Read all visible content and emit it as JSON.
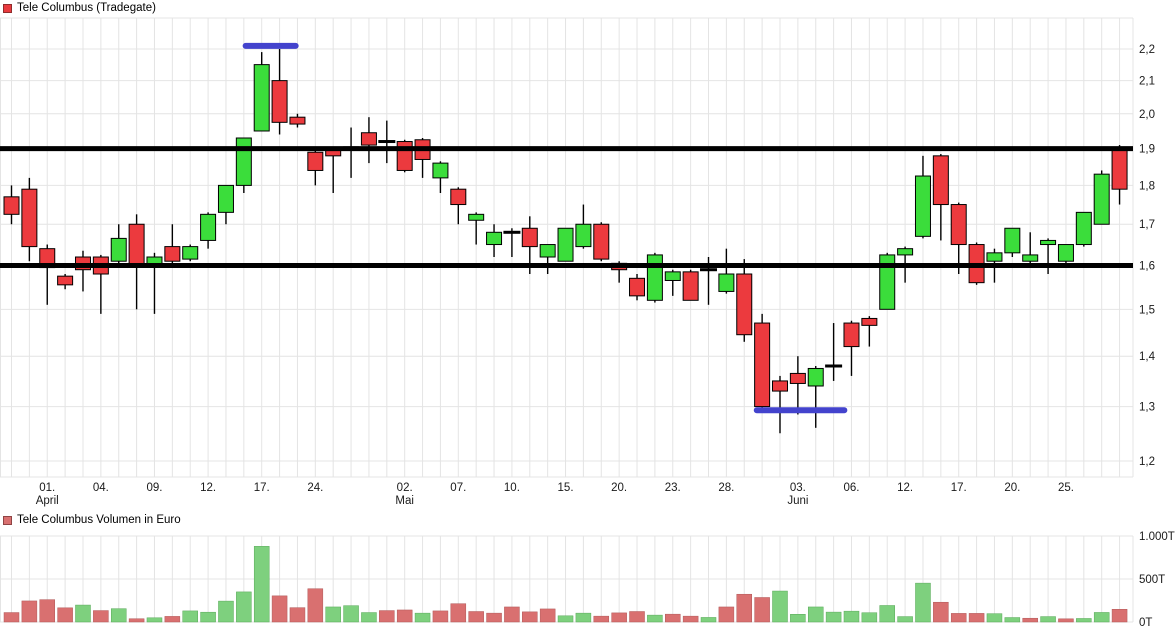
{
  "header": {
    "title": "Tele Columbus (Tradegate)"
  },
  "volume_header": {
    "title": "Tele Columbus Volumen in Euro"
  },
  "colors": {
    "candle_up": "#3bdd3b",
    "candle_down": "#ec3a3e",
    "candle_border": "#000000",
    "doji": "#000000",
    "volume_up": "#7ed07e",
    "volume_down": "#d97070",
    "support_line": "#000000",
    "highlight_line": "#4343cd",
    "grid": "#e4e4e4",
    "axis_text": "#1a1a1a",
    "legend_price_swatch": "#e93a3e",
    "legend_price_swatch_border": "#8f2c2c",
    "legend_volume_swatch": "#d97070",
    "legend_volume_swatch_border": "#8f4444"
  },
  "chart_data": [
    {
      "type": "candlestick",
      "title": "Tele Columbus (Tradegate)",
      "scale": "log",
      "ylim": [
        1.2,
        2.2
      ],
      "grid": true,
      "y_axis_ticks": [
        {
          "value": 2.2,
          "label": "2,2"
        },
        {
          "value": 2.1,
          "label": "2,1"
        },
        {
          "value": 2.0,
          "label": "2,0"
        },
        {
          "value": 1.9,
          "label": "1,9"
        },
        {
          "value": 1.8,
          "label": "1,8"
        },
        {
          "value": 1.7,
          "label": "1,7"
        },
        {
          "value": 1.6,
          "label": "1,6"
        },
        {
          "value": 1.5,
          "label": "1,5"
        },
        {
          "value": 1.4,
          "label": "1,4"
        },
        {
          "value": 1.3,
          "label": "1,3"
        },
        {
          "value": 1.2,
          "label": "1,2"
        }
      ],
      "x_axis_date_ticks": [
        {
          "candle": 3,
          "label": "01."
        },
        {
          "candle": 6,
          "label": "04."
        },
        {
          "candle": 9,
          "label": "09."
        },
        {
          "candle": 12,
          "label": "12."
        },
        {
          "candle": 15,
          "label": "17."
        },
        {
          "candle": 18,
          "label": "24."
        },
        {
          "candle": 23,
          "label": "02."
        },
        {
          "candle": 26,
          "label": "07."
        },
        {
          "candle": 29,
          "label": "10."
        },
        {
          "candle": 32,
          "label": "15."
        },
        {
          "candle": 35,
          "label": "20."
        },
        {
          "candle": 38,
          "label": "23."
        },
        {
          "candle": 41,
          "label": "28."
        },
        {
          "candle": 45,
          "label": "03."
        },
        {
          "candle": 48,
          "label": "06."
        },
        {
          "candle": 51,
          "label": "12."
        },
        {
          "candle": 54,
          "label": "17."
        },
        {
          "candle": 57,
          "label": "20."
        },
        {
          "candle": 60,
          "label": "25."
        }
      ],
      "x_axis_month_ticks": [
        {
          "candle": 3,
          "label": "April"
        },
        {
          "candle": 23,
          "label": "Mai"
        },
        {
          "candle": 45,
          "label": "Juni"
        }
      ],
      "support_lines": [
        {
          "price": 1.9
        },
        {
          "price": 1.6
        }
      ],
      "highlight_lines": [
        {
          "price": 2.21,
          "from_candle": 14.1,
          "to_candle": 16.9
        },
        {
          "price": 1.293,
          "from_candle": 42.7,
          "to_candle": 47.6
        }
      ],
      "candles": [
        [
          1.77,
          1.8,
          1.7,
          1.725,
          "r"
        ],
        [
          1.79,
          1.82,
          1.61,
          1.645,
          "r"
        ],
        [
          1.64,
          1.65,
          1.51,
          1.595,
          "r"
        ],
        [
          1.575,
          1.58,
          1.545,
          1.555,
          "r"
        ],
        [
          1.62,
          1.635,
          1.54,
          1.59,
          "r"
        ],
        [
          1.62,
          1.625,
          1.49,
          1.58,
          "r"
        ],
        [
          1.61,
          1.7,
          1.6,
          1.665,
          "g"
        ],
        [
          1.7,
          1.725,
          1.5,
          1.6,
          "r"
        ],
        [
          1.6,
          1.63,
          1.49,
          1.62,
          "g"
        ],
        [
          1.645,
          1.7,
          1.6,
          1.61,
          "r"
        ],
        [
          1.615,
          1.65,
          1.61,
          1.645,
          "g"
        ],
        [
          1.66,
          1.73,
          1.64,
          1.725,
          "g"
        ],
        [
          1.73,
          1.8,
          1.7,
          1.8,
          "g"
        ],
        [
          1.8,
          1.93,
          1.78,
          1.93,
          "g"
        ],
        [
          1.95,
          2.19,
          1.95,
          2.15,
          "g"
        ],
        [
          2.1,
          2.2,
          1.94,
          1.975,
          "r"
        ],
        [
          1.99,
          2.0,
          1.96,
          1.97,
          "r"
        ],
        [
          1.89,
          1.9,
          1.8,
          1.84,
          "r"
        ],
        [
          1.895,
          1.9,
          1.78,
          1.88,
          "r"
        ],
        [
          1.895,
          1.96,
          1.82,
          1.905,
          "g"
        ],
        [
          1.945,
          1.99,
          1.86,
          1.91,
          "r"
        ],
        [
          1.92,
          1.98,
          1.86,
          1.92,
          "d"
        ],
        [
          1.92,
          1.925,
          1.835,
          1.84,
          "r"
        ],
        [
          1.925,
          1.93,
          1.82,
          1.87,
          "r"
        ],
        [
          1.82,
          1.865,
          1.78,
          1.86,
          "g"
        ],
        [
          1.79,
          1.795,
          1.7,
          1.75,
          "r"
        ],
        [
          1.71,
          1.73,
          1.65,
          1.725,
          "g"
        ],
        [
          1.65,
          1.7,
          1.62,
          1.68,
          "g"
        ],
        [
          1.68,
          1.69,
          1.62,
          1.68,
          "d"
        ],
        [
          1.69,
          1.72,
          1.58,
          1.645,
          "r"
        ],
        [
          1.62,
          1.65,
          1.58,
          1.65,
          "g"
        ],
        [
          1.61,
          1.69,
          1.61,
          1.69,
          "g"
        ],
        [
          1.645,
          1.75,
          1.64,
          1.7,
          "g"
        ],
        [
          1.7,
          1.705,
          1.61,
          1.615,
          "r"
        ],
        [
          1.605,
          1.61,
          1.56,
          1.59,
          "r"
        ],
        [
          1.57,
          1.58,
          1.52,
          1.53,
          "r"
        ],
        [
          1.52,
          1.63,
          1.515,
          1.625,
          "g"
        ],
        [
          1.565,
          1.59,
          1.53,
          1.585,
          "g"
        ],
        [
          1.585,
          1.59,
          1.52,
          1.52,
          "r"
        ],
        [
          1.59,
          1.62,
          1.51,
          1.59,
          "d"
        ],
        [
          1.54,
          1.64,
          1.535,
          1.58,
          "g"
        ],
        [
          1.58,
          1.615,
          1.43,
          1.445,
          "r"
        ],
        [
          1.47,
          1.49,
          1.295,
          1.3,
          "r"
        ],
        [
          1.35,
          1.36,
          1.25,
          1.33,
          "r"
        ],
        [
          1.365,
          1.4,
          1.285,
          1.345,
          "r"
        ],
        [
          1.34,
          1.38,
          1.26,
          1.375,
          "g"
        ],
        [
          1.38,
          1.47,
          1.35,
          1.38,
          "d"
        ],
        [
          1.47,
          1.475,
          1.36,
          1.42,
          "r"
        ],
        [
          1.48,
          1.485,
          1.42,
          1.465,
          "r"
        ],
        [
          1.5,
          1.63,
          1.5,
          1.625,
          "g"
        ],
        [
          1.625,
          1.645,
          1.56,
          1.64,
          "g"
        ],
        [
          1.67,
          1.88,
          1.665,
          1.825,
          "g"
        ],
        [
          1.88,
          1.885,
          1.66,
          1.75,
          "r"
        ],
        [
          1.75,
          1.755,
          1.58,
          1.65,
          "r"
        ],
        [
          1.65,
          1.655,
          1.555,
          1.56,
          "r"
        ],
        [
          1.61,
          1.64,
          1.56,
          1.63,
          "g"
        ],
        [
          1.63,
          1.69,
          1.62,
          1.69,
          "g"
        ],
        [
          1.61,
          1.68,
          1.605,
          1.625,
          "g"
        ],
        [
          1.65,
          1.665,
          1.58,
          1.66,
          "g"
        ],
        [
          1.61,
          1.65,
          1.605,
          1.65,
          "g"
        ],
        [
          1.65,
          1.73,
          1.645,
          1.73,
          "g"
        ],
        [
          1.7,
          1.84,
          1.7,
          1.83,
          "g"
        ],
        [
          1.9,
          1.91,
          1.75,
          1.79,
          "r"
        ]
      ]
    },
    {
      "type": "bar",
      "title": "Tele Columbus Volumen in Euro",
      "ylabel": "Volumen in Euro",
      "ylim": [
        0,
        1000
      ],
      "y_axis_ticks": [
        {
          "value": 1000,
          "label": "1.000T"
        },
        {
          "value": 500,
          "label": "500T"
        },
        {
          "value": 0,
          "label": "0T"
        }
      ],
      "values_in_thousands": [
        [
          110,
          "r"
        ],
        [
          245,
          "r"
        ],
        [
          260,
          "r"
        ],
        [
          165,
          "r"
        ],
        [
          197,
          "g"
        ],
        [
          133,
          "r"
        ],
        [
          155,
          "g"
        ],
        [
          38,
          "r"
        ],
        [
          49,
          "g"
        ],
        [
          65,
          "r"
        ],
        [
          129,
          "g"
        ],
        [
          114,
          "g"
        ],
        [
          243,
          "g"
        ],
        [
          350,
          "g"
        ],
        [
          880,
          "g"
        ],
        [
          304,
          "r"
        ],
        [
          167,
          "r"
        ],
        [
          387,
          "r"
        ],
        [
          175,
          "g"
        ],
        [
          190,
          "g"
        ],
        [
          110,
          "g"
        ],
        [
          133,
          "r"
        ],
        [
          140,
          "r"
        ],
        [
          103,
          "g"
        ],
        [
          129,
          "r"
        ],
        [
          213,
          "r"
        ],
        [
          122,
          "r"
        ],
        [
          103,
          "r"
        ],
        [
          175,
          "r"
        ],
        [
          118,
          "r"
        ],
        [
          152,
          "r"
        ],
        [
          72,
          "g"
        ],
        [
          103,
          "g"
        ],
        [
          68,
          "r"
        ],
        [
          106,
          "r"
        ],
        [
          122,
          "r"
        ],
        [
          80,
          "g"
        ],
        [
          91,
          "r"
        ],
        [
          68,
          "r"
        ],
        [
          53,
          "g"
        ],
        [
          175,
          "r"
        ],
        [
          323,
          "r"
        ],
        [
          285,
          "r"
        ],
        [
          360,
          "g"
        ],
        [
          90,
          "g"
        ],
        [
          175,
          "g"
        ],
        [
          115,
          "g"
        ],
        [
          126,
          "g"
        ],
        [
          108,
          "g"
        ],
        [
          192,
          "g"
        ],
        [
          63,
          "g"
        ],
        [
          452,
          "g"
        ],
        [
          230,
          "r"
        ],
        [
          100,
          "r"
        ],
        [
          100,
          "r"
        ],
        [
          97,
          "g"
        ],
        [
          52,
          "g"
        ],
        [
          44,
          "r"
        ],
        [
          63,
          "g"
        ],
        [
          37,
          "r"
        ],
        [
          41,
          "g"
        ],
        [
          111,
          "g"
        ],
        [
          148,
          "r"
        ]
      ]
    }
  ]
}
